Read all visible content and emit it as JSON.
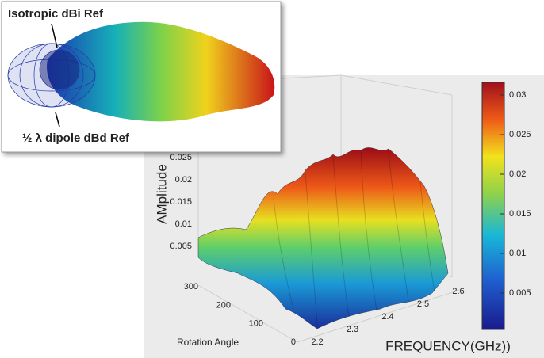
{
  "inset": {
    "labels": [
      "Isotropic dBi Ref",
      "½ λ dipole dBd Ref"
    ]
  },
  "plot": {
    "z_label": "AMplitude",
    "x_label": "FREQUENCY(GHz))",
    "y_label": "Rotation Angle",
    "z_ticks": [
      0.005,
      0.01,
      0.015,
      0.02,
      0.025
    ],
    "x_ticks": [
      2.2,
      2.3,
      2.4,
      2.5,
      2.6
    ],
    "y_ticks": [
      0,
      100,
      200,
      300
    ],
    "colorbar_ticks": [
      0.005,
      0.01,
      0.015,
      0.02,
      0.025,
      0.03
    ]
  }
}
